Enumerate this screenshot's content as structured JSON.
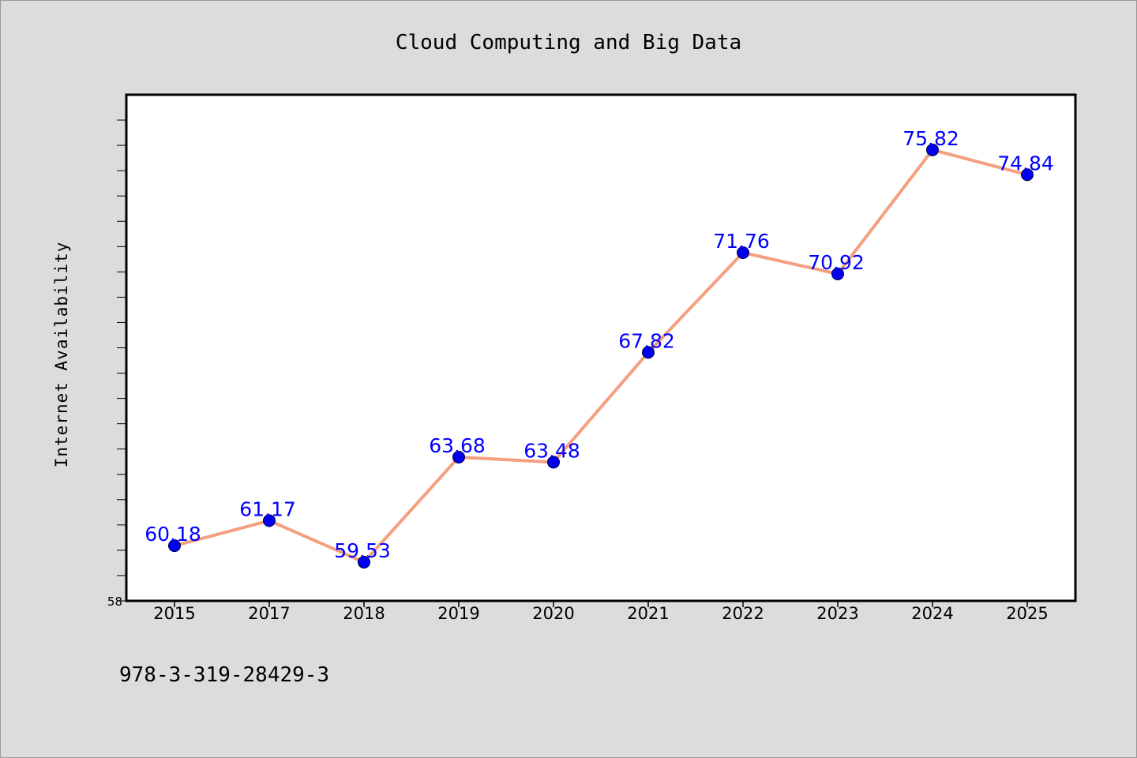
{
  "chart_data": {
    "type": "line",
    "title": "Cloud Computing and Big Data",
    "xlabel": "",
    "ylabel": "Internet Availability",
    "categories": [
      "2015",
      "2017",
      "2018",
      "2019",
      "2020",
      "2021",
      "2022",
      "2023",
      "2024",
      "2025"
    ],
    "series": [
      {
        "values": [
          60.18,
          61.17,
          59.53,
          63.68,
          63.48,
          67.82,
          71.76,
          70.92,
          75.82,
          74.84
        ]
      }
    ],
    "data_labels": [
      "60.18",
      "61.17",
      "59.53",
      "63.68",
      "63.48",
      "67.82",
      "71.76",
      "70.92",
      "75.82",
      "74.84"
    ],
    "ylim": [
      58,
      78
    ],
    "yticks_labeled": [
      "58"
    ],
    "grid": false,
    "legend": "none",
    "colors": {
      "line": "#f4a07f",
      "marker": "#0000ee",
      "data_label": "#0000ff",
      "plot_background": "#ffffff",
      "figure_background": "#dcdcdc"
    }
  },
  "footer": {
    "isbn": "978-3-319-28429-3"
  }
}
